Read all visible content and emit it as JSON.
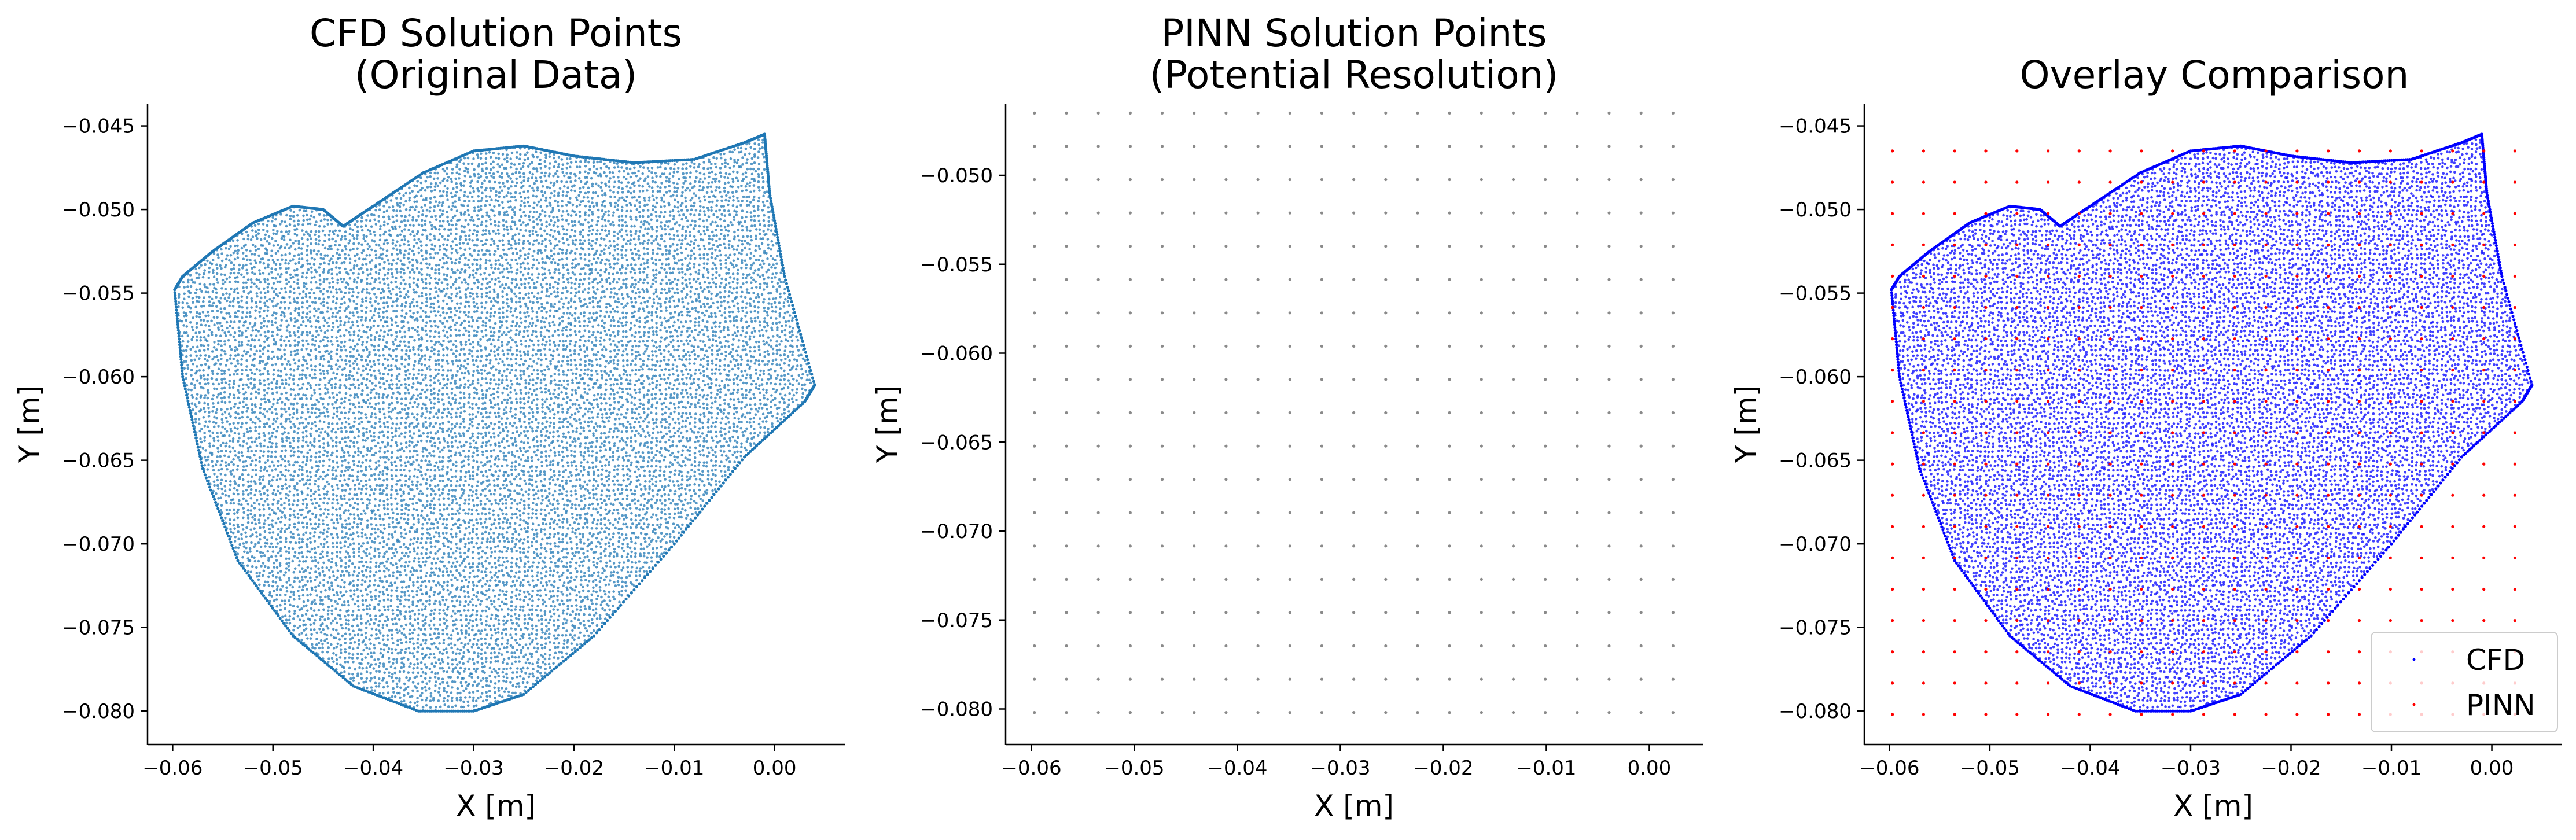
{
  "colors": {
    "cfd_panel1": "#1f77b4",
    "cfd_overlay": "#0000ff",
    "pinn": "#ff0000",
    "pinn_panel2": "#8a8a8a"
  },
  "chart_data": [
    {
      "type": "scatter",
      "title_lines": [
        "CFD Solution Points",
        "(Original Data)"
      ],
      "xlabel": "X [m]",
      "ylabel": "Y [m]",
      "xlim": [
        -0.0625,
        0.007
      ],
      "ylim": [
        -0.082,
        -0.0437
      ],
      "xticks": [
        -0.06,
        -0.05,
        -0.04,
        -0.03,
        -0.02,
        -0.01,
        0.0
      ],
      "xtick_labels": [
        "−0.06",
        "−0.05",
        "−0.04",
        "−0.03",
        "−0.02",
        "−0.01",
        "0.00"
      ],
      "yticks": [
        -0.08,
        -0.075,
        -0.07,
        -0.065,
        -0.06,
        -0.055,
        -0.05,
        -0.045
      ],
      "ytick_labels": [
        "−0.080",
        "−0.075",
        "−0.070",
        "−0.065",
        "−0.060",
        "−0.055",
        "−0.050",
        "−0.045"
      ],
      "grid": false,
      "series": [
        {
          "color": "#1f77b4",
          "description": "dense point cloud of an irregular domain",
          "boundary": [
            [
              -0.0598,
              -0.0548
            ],
            [
              -0.059,
              -0.06
            ],
            [
              -0.057,
              -0.0655
            ],
            [
              -0.0535,
              -0.071
            ],
            [
              -0.048,
              -0.0755
            ],
            [
              -0.042,
              -0.0785
            ],
            [
              -0.0355,
              -0.08
            ],
            [
              -0.03,
              -0.08
            ],
            [
              -0.025,
              -0.079
            ],
            [
              -0.018,
              -0.0755
            ],
            [
              -0.01,
              -0.07
            ],
            [
              -0.003,
              -0.0648
            ],
            [
              0.003,
              -0.0615
            ],
            [
              0.004,
              -0.0605
            ],
            [
              0.001,
              -0.054
            ],
            [
              -0.0005,
              -0.049
            ],
            [
              -0.001,
              -0.0455
            ],
            [
              -0.003,
              -0.046
            ],
            [
              -0.008,
              -0.047
            ],
            [
              -0.014,
              -0.0472
            ],
            [
              -0.02,
              -0.0468
            ],
            [
              -0.025,
              -0.0462
            ],
            [
              -0.03,
              -0.0465
            ],
            [
              -0.035,
              -0.0478
            ],
            [
              -0.04,
              -0.0498
            ],
            [
              -0.043,
              -0.051
            ],
            [
              -0.045,
              -0.05
            ],
            [
              -0.048,
              -0.0498
            ],
            [
              -0.052,
              -0.0508
            ],
            [
              -0.056,
              -0.0525
            ],
            [
              -0.059,
              -0.054
            ]
          ]
        }
      ]
    },
    {
      "type": "scatter",
      "title_lines": [
        "PINN Solution Points",
        "(Potential Resolution)"
      ],
      "xlabel": "X [m]",
      "ylabel": "Y [m]",
      "xlim": [
        -0.0625,
        0.0052
      ],
      "ylim": [
        -0.082,
        -0.046
      ],
      "xticks": [
        -0.06,
        -0.05,
        -0.04,
        -0.03,
        -0.02,
        -0.01,
        0.0
      ],
      "xtick_labels": [
        "−0.06",
        "−0.05",
        "−0.04",
        "−0.03",
        "−0.02",
        "−0.01",
        "0.00"
      ],
      "yticks": [
        -0.08,
        -0.075,
        -0.07,
        -0.065,
        -0.06,
        -0.055,
        -0.05
      ],
      "ytick_labels": [
        "−0.080",
        "−0.075",
        "−0.070",
        "−0.065",
        "−0.060",
        "−0.055",
        "−0.050"
      ],
      "grid": false,
      "series": [
        {
          "color": "#8a8a8a",
          "grid_points": {
            "x_start": -0.0597,
            "x_stop": 0.0023,
            "x_count": 21,
            "y_start": -0.0802,
            "y_stop": -0.0465,
            "y_count": 19
          }
        }
      ]
    },
    {
      "type": "scatter",
      "title_lines": [
        "Overlay Comparison"
      ],
      "xlabel": "X [m]",
      "ylabel": "Y [m]",
      "xlim": [
        -0.0625,
        0.007
      ],
      "ylim": [
        -0.082,
        -0.0437
      ],
      "xticks": [
        -0.06,
        -0.05,
        -0.04,
        -0.03,
        -0.02,
        -0.01,
        0.0
      ],
      "xtick_labels": [
        "−0.06",
        "−0.05",
        "−0.04",
        "−0.03",
        "−0.02",
        "−0.01",
        "0.00"
      ],
      "yticks": [
        -0.08,
        -0.075,
        -0.07,
        -0.065,
        -0.06,
        -0.055,
        -0.05,
        -0.045
      ],
      "ytick_labels": [
        "−0.080",
        "−0.075",
        "−0.070",
        "−0.065",
        "−0.060",
        "−0.055",
        "−0.050",
        "−0.045"
      ],
      "grid": false,
      "legend": {
        "placement": "lower right",
        "entries": [
          "CFD",
          "PINN"
        ]
      },
      "series": [
        {
          "name": "CFD",
          "color": "#0000ff",
          "same_cloud_as_panel": 0
        },
        {
          "name": "PINN",
          "color": "#ff0000",
          "grid_points": {
            "x_start": -0.0597,
            "x_stop": 0.0023,
            "x_count": 21,
            "y_start": -0.0802,
            "y_stop": -0.0465,
            "y_count": 19
          }
        }
      ]
    }
  ]
}
